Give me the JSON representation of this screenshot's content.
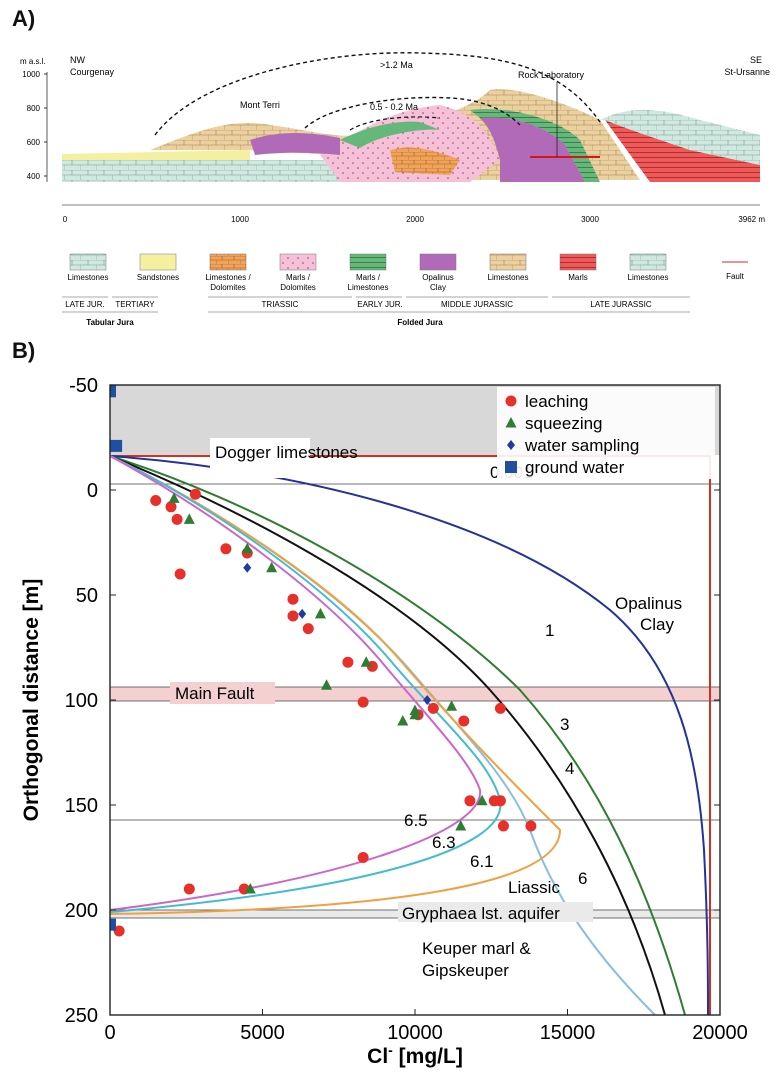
{
  "panelA": {
    "label": "A)",
    "y_axis_title": "m a.s.l.",
    "y_ticks": [
      400,
      600,
      800,
      1000
    ],
    "x_ticks": [
      0,
      1000,
      2000,
      3000
    ],
    "x_end_label": "3962 m",
    "left_dir": "NW",
    "left_place": "Courgenay",
    "right_dir": "SE",
    "right_place": "St-Ursanne",
    "annotations": {
      "age_outer": ">1.2 Ma",
      "age_inner": "0.5 - 0.2 Ma",
      "mont_terri": "Mont Terri",
      "rock_lab": "Rock Laboratory"
    },
    "legend": [
      {
        "name": "Limestones",
        "color": "#cfe8e0",
        "pattern": "brick"
      },
      {
        "name": "Sandstones",
        "color": "#f4f0a0",
        "pattern": "plain"
      },
      {
        "name": "Limestones / Dolomites",
        "color": "#f0a45a",
        "pattern": "brick"
      },
      {
        "name": "Marls / Dolomites",
        "color": "#f6c0d8",
        "pattern": "dots"
      },
      {
        "name": "Marls / Limestones",
        "color": "#66b87a",
        "pattern": "lines"
      },
      {
        "name": "Opalinus Clay",
        "color": "#b06ab8",
        "pattern": "plain"
      },
      {
        "name": "Limestones",
        "color": "#ebd0a0",
        "pattern": "brick"
      },
      {
        "name": "Marls",
        "color": "#ee5a5a",
        "pattern": "lines"
      },
      {
        "name": "Limestones",
        "color": "#cfe8e0",
        "pattern": "brick"
      }
    ],
    "fault_label": "Fault",
    "fault_color": "#e07070",
    "periods": [
      "LATE JUR.",
      "TERTIARY",
      "TRIASSIC",
      "EARLY JUR.",
      "MIDDLE JURASSIC",
      "LATE JURASSIC"
    ],
    "regions": [
      "Tabular Jura",
      "Folded Jura"
    ]
  },
  "panelB": {
    "label": "B)",
    "chart_data": {
      "type": "scatter",
      "xlabel": "Cl",
      "xlabel_sup": "-",
      "xlabel_unit": " [mg/L]",
      "ylabel": "Orthogonal distance [m]",
      "xlim": [
        0,
        20000
      ],
      "ylim": [
        -50,
        250
      ],
      "x_ticks": [
        0,
        5000,
        10000,
        15000,
        20000
      ],
      "y_ticks": [
        -50,
        0,
        50,
        100,
        150,
        200,
        250
      ],
      "grid": false,
      "legend_position": "top-right",
      "series": [
        {
          "name": "leaching",
          "marker": "circle",
          "color": "#e8302a",
          "points": [
            [
              1500,
              5
            ],
            [
              2000,
              8
            ],
            [
              2200,
              14
            ],
            [
              2800,
              2
            ],
            [
              2300,
              40
            ],
            [
              3800,
              28
            ],
            [
              4500,
              30
            ],
            [
              6000,
              52
            ],
            [
              6000,
              60
            ],
            [
              6500,
              66
            ],
            [
              7800,
              82
            ],
            [
              8600,
              84
            ],
            [
              8300,
              101
            ],
            [
              10100,
              107
            ],
            [
              10600,
              104
            ],
            [
              11600,
              110
            ],
            [
              12800,
              104
            ],
            [
              11800,
              148
            ],
            [
              12600,
              148
            ],
            [
              12800,
              148
            ],
            [
              12900,
              160
            ],
            [
              13800,
              160
            ],
            [
              8300,
              175
            ],
            [
              2600,
              190
            ],
            [
              4400,
              190
            ],
            [
              300,
              210
            ]
          ]
        },
        {
          "name": "squeezing",
          "marker": "triangle",
          "color": "#2e7d32",
          "points": [
            [
              2100,
              4
            ],
            [
              2600,
              14
            ],
            [
              4500,
              28
            ],
            [
              5300,
              37
            ],
            [
              6900,
              59
            ],
            [
              7100,
              93
            ],
            [
              8400,
              82
            ],
            [
              9600,
              110
            ],
            [
              10000,
              107
            ],
            [
              10000,
              105
            ],
            [
              11200,
              103
            ],
            [
              11500,
              160
            ],
            [
              12200,
              148
            ],
            [
              4600,
              190
            ]
          ]
        },
        {
          "name": "water sampling",
          "marker": "diamond",
          "color": "#1f3aa0",
          "points": [
            [
              4500,
              37
            ],
            [
              6300,
              59
            ],
            [
              10400,
              100
            ]
          ]
        },
        {
          "name": "ground water",
          "marker": "square",
          "color": "#1f4fa0",
          "points": [
            [
              0,
              -47
            ],
            [
              200,
              -21
            ],
            [
              0,
              207
            ]
          ]
        }
      ],
      "curves": [
        {
          "label": "0.001",
          "color": "#cc3322"
        },
        {
          "label": "1",
          "color": "#22339a"
        },
        {
          "label": "3",
          "color": "#2e7d32"
        },
        {
          "label": "4",
          "color": "#111111"
        },
        {
          "label": "6",
          "color": "#88bfe0"
        },
        {
          "label": "6.1",
          "color": "#f0a040"
        },
        {
          "label": "6.3",
          "color": "#44bbd0"
        },
        {
          "label": "6.5",
          "color": "#cc66cc"
        }
      ],
      "annotations": {
        "dogger": "Dogger limestones",
        "opalinus": "Opalinus Clay",
        "main_fault": "Main Fault",
        "liassic": "Liassic",
        "gryphaea": "Gryphaea lst. aquifer",
        "keuper": "Keuper marl & Gipskeuper"
      }
    }
  }
}
